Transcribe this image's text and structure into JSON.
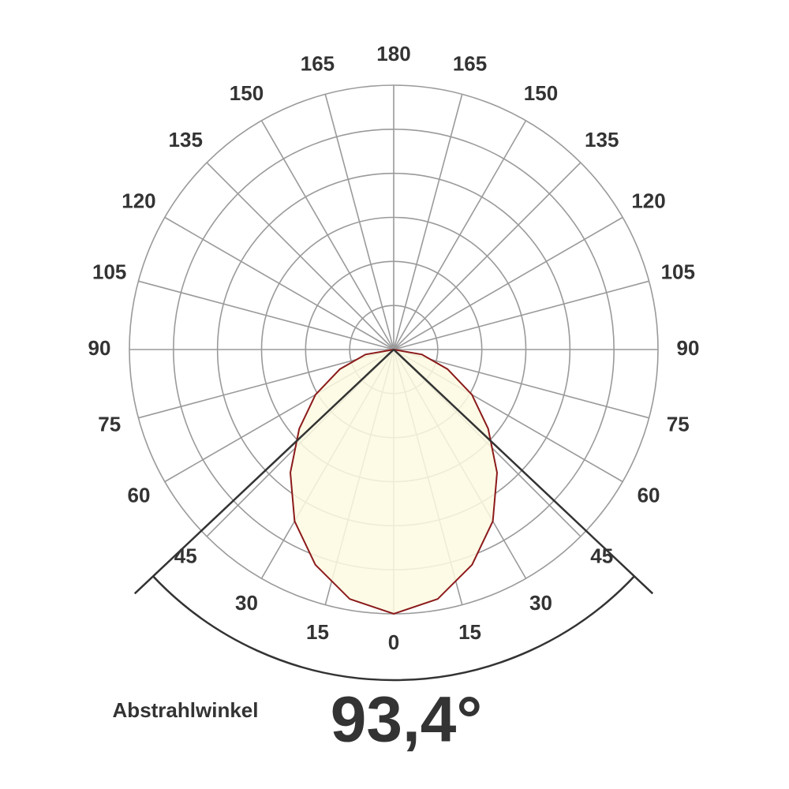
{
  "chart_data": {
    "type": "polar",
    "x": [
      -90,
      -80,
      -70,
      -60,
      -50,
      -40,
      -30,
      -20,
      -10,
      0,
      10,
      20,
      30,
      40,
      50,
      60,
      70,
      80,
      90
    ],
    "values": [
      0,
      13,
      26,
      41,
      56,
      73,
      90,
      104,
      115,
      120,
      115,
      104,
      90,
      73,
      56,
      41,
      26,
      13,
      0
    ],
    "color": "#8b1a1a",
    "fill": "#fdfae2",
    "rlim": [
      0,
      120
    ],
    "rgrid": [
      20,
      40,
      60,
      80,
      100,
      120
    ],
    "thetaticks": [
      0,
      15,
      30,
      45,
      60,
      75,
      90,
      105,
      120,
      135,
      150,
      165,
      180
    ],
    "annotation": "Abstrahlwinkel",
    "beam_angle": {
      "value": 93.4,
      "label": "93,4°"
    }
  }
}
